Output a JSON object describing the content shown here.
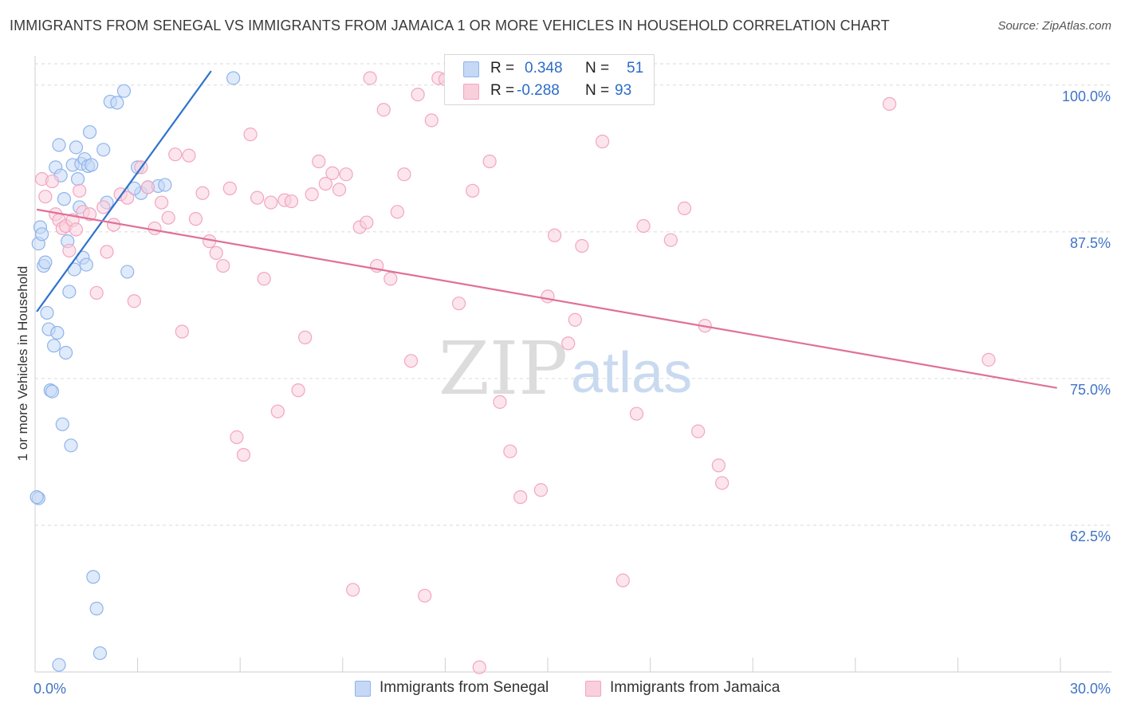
{
  "title": "IMMIGRANTS FROM SENEGAL VS IMMIGRANTS FROM JAMAICA 1 OR MORE VEHICLES IN HOUSEHOLD CORRELATION CHART",
  "source": "Source: ZipAtlas.com",
  "watermark": {
    "zip": "ZIP",
    "atlas": "atlas"
  },
  "stats": [
    {
      "r_label": "R =",
      "r_value": "0.348",
      "n_label": "N =",
      "n_value": "51"
    },
    {
      "r_label": "R =",
      "r_value": "-0.288",
      "n_label": "N =",
      "n_value": "93"
    }
  ],
  "legend": [
    {
      "label": "Immigrants from Senegal"
    },
    {
      "label": "Immigrants from Jamaica"
    }
  ],
  "chart_data": {
    "type": "scatter",
    "title": "IMMIGRANTS FROM SENEGAL VS IMMIGRANTS FROM JAMAICA 1 OR MORE VEHICLES IN HOUSEHOLD CORRELATION CHART",
    "xlabel": "",
    "ylabel": "1 or more Vehicles in Household",
    "xlim": [
      0,
      30
    ],
    "ylim": [
      50,
      102.5
    ],
    "x_tick_labels": [
      {
        "value": 0,
        "label": "0.0%"
      },
      {
        "value": 30,
        "label": "30.0%"
      }
    ],
    "x_minor_ticks": [
      0,
      3,
      6,
      9,
      12,
      15,
      18,
      21,
      24,
      27,
      30
    ],
    "y_ticks": [
      {
        "value": 62.5,
        "label": "62.5%"
      },
      {
        "value": 75.0,
        "label": "75.0%"
      },
      {
        "value": 87.5,
        "label": "87.5%"
      },
      {
        "value": 100.0,
        "label": "100.0%"
      }
    ],
    "grid": "horizontal-dashed",
    "series": [
      {
        "name": "Immigrants from Senegal",
        "color": "#8fb4ec",
        "fill": "#c5d8f6",
        "trend_color": "#2f72cc",
        "r": 0.348,
        "n": 51,
        "trend": {
          "x0": 0.05,
          "y0": 80.7,
          "x1": 5.15,
          "y1": 101.2
        },
        "points": [
          [
            0.1,
            86.5
          ],
          [
            0.15,
            87.9
          ],
          [
            0.2,
            87.3
          ],
          [
            0.25,
            84.6
          ],
          [
            0.3,
            84.9
          ],
          [
            0.35,
            80.6
          ],
          [
            0.4,
            79.2
          ],
          [
            0.45,
            74.0
          ],
          [
            0.5,
            73.9
          ],
          [
            0.55,
            77.8
          ],
          [
            0.6,
            93.0
          ],
          [
            0.65,
            78.9
          ],
          [
            0.7,
            94.9
          ],
          [
            0.75,
            92.3
          ],
          [
            0.8,
            71.1
          ],
          [
            0.85,
            90.3
          ],
          [
            0.9,
            77.2
          ],
          [
            0.95,
            86.7
          ],
          [
            1.0,
            82.4
          ],
          [
            1.05,
            69.3
          ],
          [
            1.1,
            93.2
          ],
          [
            1.15,
            84.3
          ],
          [
            1.2,
            94.7
          ],
          [
            1.25,
            92.0
          ],
          [
            1.3,
            89.6
          ],
          [
            1.35,
            93.3
          ],
          [
            1.4,
            85.3
          ],
          [
            1.45,
            93.7
          ],
          [
            1.5,
            84.7
          ],
          [
            1.55,
            93.1
          ],
          [
            1.6,
            96.0
          ],
          [
            1.65,
            93.2
          ],
          [
            1.7,
            58.1
          ],
          [
            1.8,
            55.4
          ],
          [
            1.9,
            51.6
          ],
          [
            0.1,
            64.8
          ],
          [
            0.7,
            50.6
          ],
          [
            2.2,
            98.6
          ],
          [
            2.4,
            98.5
          ],
          [
            2.6,
            99.5
          ],
          [
            2.0,
            94.5
          ],
          [
            2.1,
            90.0
          ],
          [
            2.7,
            84.1
          ],
          [
            3.0,
            93.0
          ],
          [
            3.1,
            90.8
          ],
          [
            2.9,
            91.2
          ],
          [
            3.3,
            91.3
          ],
          [
            3.6,
            91.4
          ],
          [
            3.8,
            91.5
          ],
          [
            5.8,
            100.6
          ],
          [
            0.05,
            64.9
          ]
        ]
      },
      {
        "name": "Immigrants from Jamaica",
        "color": "#f2a6bf",
        "fill": "#f9cfdc",
        "trend_color": "#e07099",
        "r": -0.288,
        "n": 93,
        "trend": {
          "x0": 0.05,
          "y0": 89.4,
          "x1": 29.9,
          "y1": 74.2
        },
        "points": [
          [
            0.2,
            92.0
          ],
          [
            0.3,
            90.5
          ],
          [
            0.5,
            91.8
          ],
          [
            0.6,
            89.0
          ],
          [
            0.7,
            88.5
          ],
          [
            0.8,
            87.8
          ],
          [
            0.9,
            88.0
          ],
          [
            1.0,
            85.9
          ],
          [
            1.1,
            88.5
          ],
          [
            1.2,
            87.7
          ],
          [
            1.3,
            91.0
          ],
          [
            1.4,
            89.2
          ],
          [
            1.6,
            89.0
          ],
          [
            1.8,
            82.3
          ],
          [
            2.0,
            89.6
          ],
          [
            2.1,
            85.8
          ],
          [
            2.3,
            88.1
          ],
          [
            2.5,
            90.7
          ],
          [
            2.7,
            90.4
          ],
          [
            2.9,
            81.6
          ],
          [
            3.1,
            93.0
          ],
          [
            3.3,
            91.3
          ],
          [
            3.5,
            87.8
          ],
          [
            3.7,
            90.0
          ],
          [
            3.9,
            88.7
          ],
          [
            4.1,
            94.1
          ],
          [
            4.3,
            79.0
          ],
          [
            4.5,
            94.0
          ],
          [
            4.7,
            88.6
          ],
          [
            4.9,
            90.8
          ],
          [
            5.1,
            86.7
          ],
          [
            5.3,
            85.7
          ],
          [
            5.5,
            84.6
          ],
          [
            5.7,
            91.2
          ],
          [
            5.9,
            70.0
          ],
          [
            6.1,
            68.5
          ],
          [
            6.3,
            95.8
          ],
          [
            6.5,
            90.4
          ],
          [
            6.7,
            83.5
          ],
          [
            6.9,
            90.0
          ],
          [
            7.1,
            72.2
          ],
          [
            7.3,
            90.2
          ],
          [
            7.5,
            90.1
          ],
          [
            7.7,
            74.0
          ],
          [
            7.9,
            78.5
          ],
          [
            8.1,
            90.7
          ],
          [
            8.3,
            93.5
          ],
          [
            8.5,
            91.6
          ],
          [
            8.7,
            92.5
          ],
          [
            8.9,
            91.1
          ],
          [
            9.1,
            92.4
          ],
          [
            9.3,
            57.0
          ],
          [
            9.5,
            87.9
          ],
          [
            9.7,
            88.3
          ],
          [
            9.8,
            100.6
          ],
          [
            10.0,
            84.6
          ],
          [
            10.2,
            97.9
          ],
          [
            10.4,
            83.5
          ],
          [
            10.6,
            89.2
          ],
          [
            10.8,
            92.4
          ],
          [
            11.0,
            76.5
          ],
          [
            11.2,
            99.2
          ],
          [
            11.4,
            56.5
          ],
          [
            11.6,
            97.0
          ],
          [
            11.8,
            100.6
          ],
          [
            12.0,
            100.5
          ],
          [
            12.2,
            100.6
          ],
          [
            12.4,
            81.4
          ],
          [
            12.6,
            100.5
          ],
          [
            12.8,
            91.0
          ],
          [
            13.0,
            50.4
          ],
          [
            13.3,
            93.5
          ],
          [
            13.6,
            73.0
          ],
          [
            13.9,
            68.8
          ],
          [
            14.2,
            64.9
          ],
          [
            14.8,
            65.5
          ],
          [
            15.0,
            82.0
          ],
          [
            15.2,
            87.2
          ],
          [
            15.6,
            78.0
          ],
          [
            15.8,
            80.0
          ],
          [
            16.0,
            86.3
          ],
          [
            16.6,
            95.2
          ],
          [
            17.2,
            57.8
          ],
          [
            17.6,
            72.0
          ],
          [
            17.8,
            88.0
          ],
          [
            18.6,
            86.8
          ],
          [
            19.0,
            89.5
          ],
          [
            19.4,
            70.5
          ],
          [
            19.6,
            79.5
          ],
          [
            20.0,
            67.6
          ],
          [
            20.1,
            66.1
          ],
          [
            25.0,
            98.4
          ],
          [
            27.9,
            76.6
          ]
        ]
      }
    ]
  }
}
